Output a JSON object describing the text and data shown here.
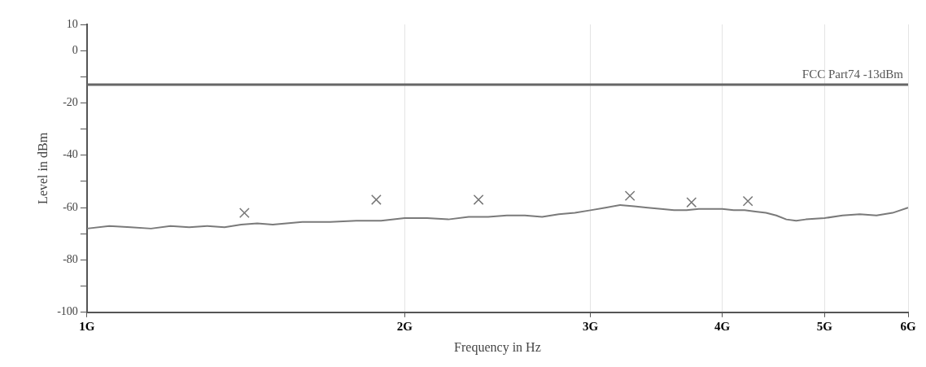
{
  "chart_data": {
    "type": "line",
    "xlabel": "Frequency in Hz",
    "ylabel": "Level in dBm",
    "log": "x",
    "xlim": [
      1,
      6
    ],
    "xticks": [
      {
        "value": 1,
        "label": "1G"
      },
      {
        "value": 2,
        "label": "2G"
      },
      {
        "value": 3,
        "label": "3G"
      },
      {
        "value": 4,
        "label": "4G"
      },
      {
        "value": 5,
        "label": "5G"
      },
      {
        "value": 6,
        "label": "6G"
      }
    ],
    "ylim": [
      -100,
      10
    ],
    "yticks": [
      -100,
      {
        "value": -90,
        "label": null
      },
      -80,
      {
        "value": -70,
        "label": null
      },
      -60,
      {
        "value": -50,
        "label": null
      },
      -40,
      {
        "value": -30,
        "label": null
      },
      -20,
      {
        "value": -10,
        "label": null
      },
      0,
      10
    ],
    "grid": "x",
    "legend": false,
    "ref_lines": [
      {
        "axis": "y",
        "value": -13,
        "label": "FCC Part74 -13dBm",
        "color": "#666666"
      }
    ],
    "series": [
      {
        "color": "#7a7a7a",
        "marker": "none",
        "x": [
          1,
          1.05,
          1.1,
          1.15,
          1.2,
          1.25,
          1.3,
          1.35,
          1.4,
          1.45,
          1.5,
          1.6,
          1.7,
          1.8,
          1.9,
          2,
          2.1,
          2.2,
          2.3,
          2.4,
          2.5,
          2.6,
          2.7,
          2.8,
          2.9,
          3,
          3.1,
          3.2,
          3.3,
          3.4,
          3.5,
          3.6,
          3.7,
          3.8,
          3.9,
          4,
          4.1,
          4.2,
          4.3,
          4.4,
          4.5,
          4.6,
          4.7,
          4.8,
          5,
          5.2,
          5.4,
          5.6,
          5.8,
          6
        ],
        "values": [
          -68,
          -67,
          -67.5,
          -68,
          -67,
          -67.5,
          -67,
          -67.5,
          -66.5,
          -66,
          -66.5,
          -65.5,
          -65.5,
          -65,
          -65,
          -64,
          -64,
          -64.5,
          -63.5,
          -63.5,
          -63,
          -63,
          -63.5,
          -62.5,
          -62,
          -61,
          -60,
          -59,
          -59.5,
          -60,
          -60.5,
          -61,
          -61,
          -60.5,
          -60.5,
          -60.5,
          -61,
          -61,
          -61.5,
          -62,
          -63,
          -64.5,
          -65,
          -64.5,
          -64,
          -63,
          -62.5,
          -63,
          -62,
          -60
        ]
      },
      {
        "type": "scatter",
        "color": "#777777",
        "marker": "cross",
        "x": [
          1.41,
          1.88,
          2.35,
          3.27,
          3.74,
          4.23
        ],
        "values": [
          -62,
          -57,
          -57,
          -55.5,
          -58,
          -57.5
        ]
      }
    ]
  }
}
